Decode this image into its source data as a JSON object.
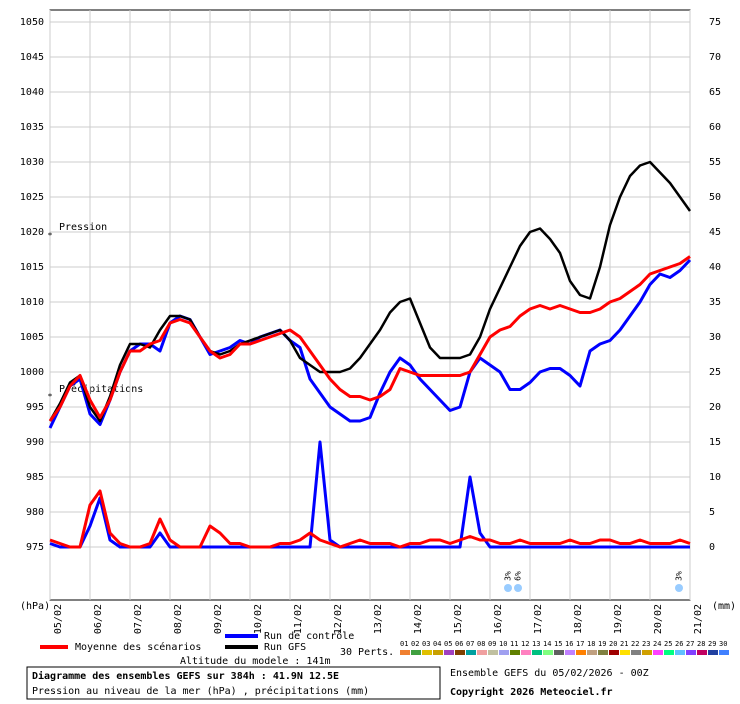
{
  "chart_data": {
    "type": "line",
    "title": "Diagramme des ensembles GEFS sur 384h : 41.9N 12.5E",
    "subtitle": "Pression au niveau de la mer (hPa) , précipitations (mm)",
    "ylabel": "(hPa)",
    "y2label": "(mm)",
    "annotations": [
      "Pression",
      "Précipitations"
    ],
    "categories": [
      "05/02",
      null,
      null,
      null,
      "06/02",
      null,
      null,
      null,
      "07/02",
      null,
      null,
      null,
      "08/02",
      null,
      null,
      null,
      "09/02",
      null,
      null,
      null,
      "10/02",
      null,
      null,
      null,
      "11/02",
      null,
      null,
      null,
      "12/02",
      null,
      null,
      null,
      "13/02",
      null,
      null,
      null,
      "14/02",
      null,
      null,
      null,
      "15/02",
      null,
      null,
      null,
      "16/02",
      null,
      null,
      null,
      "17/02",
      null,
      null,
      null,
      "18/02",
      null,
      null,
      null,
      "19/02",
      null,
      null,
      null,
      "20/02",
      null,
      null,
      null,
      "21/02"
    ],
    "ylim": [
      975,
      1050
    ],
    "yticks": [
      975,
      980,
      985,
      990,
      995,
      1000,
      1005,
      1010,
      1015,
      1020,
      1025,
      1030,
      1035,
      1040,
      1045,
      1050
    ],
    "y2lim": [
      0,
      75
    ],
    "y2ticks": [
      0,
      5,
      10,
      15,
      20,
      25,
      30,
      35,
      40,
      45,
      50,
      55,
      60,
      65,
      70,
      75
    ],
    "grid": true,
    "series": [
      {
        "name": "Moyenne des scénarios",
        "color": "#ff0000",
        "values": [
          993,
          995,
          998,
          999.5,
          996,
          993.5,
          996,
          1000,
          1003,
          1003,
          1004,
          1004.5,
          1007,
          1007.5,
          1007,
          1005,
          1003,
          1002,
          1002.5,
          1004,
          1004,
          1004.5,
          1005,
          1005.5,
          1006,
          1005,
          1003,
          1001,
          999,
          997.5,
          996.5,
          996.5,
          996,
          996.5,
          997.5,
          1000.5,
          1000,
          999.5,
          999.5,
          999.5,
          999.5,
          999.5,
          1000,
          1002.5,
          1005,
          1006,
          1006.5,
          1008,
          1009,
          1009.5,
          1009,
          1009.5,
          1009,
          1008.5,
          1008.5,
          1009,
          1010,
          1010.5,
          1011.5,
          1012.5,
          1014,
          1014.5,
          1015,
          1015.5,
          1016.5
        ],
        "precip": [
          1,
          0.5,
          0,
          0,
          6,
          8,
          2,
          0.5,
          0,
          0,
          0.5,
          4,
          1,
          0,
          0,
          0,
          3,
          2,
          0.5,
          0.5,
          0,
          0,
          0,
          0.5,
          0.5,
          1,
          2,
          1,
          0.5,
          0,
          0.5,
          1,
          0.5,
          0.5,
          0.5,
          0,
          0.5,
          0.5,
          1,
          1,
          0.5,
          1,
          1.5,
          1,
          1,
          0.5,
          0.5,
          1,
          0.5,
          0.5,
          0.5,
          0.5,
          1,
          0.5,
          0.5,
          1,
          1,
          0.5,
          0.5,
          1,
          0.5,
          0.5,
          0.5,
          1,
          0.5
        ]
      },
      {
        "name": "Run de contrôle",
        "color": "#0000ff",
        "values": [
          992,
          995,
          998,
          999,
          994,
          992.5,
          996,
          1000,
          1003,
          1004,
          1004,
          1003,
          1007,
          1008,
          1007.5,
          1005,
          1002.5,
          1003,
          1003.5,
          1004.5,
          1004,
          1005,
          1005.5,
          1006,
          1004.5,
          1003.5,
          999,
          997,
          995,
          994,
          993,
          993,
          993.5,
          997,
          1000,
          1002,
          1001,
          999,
          997.5,
          996,
          994.5,
          995,
          1000,
          1002,
          1001,
          1000,
          997.5,
          997.5,
          998.5,
          1000,
          1000.5,
          1000.5,
          999.5,
          998,
          1003,
          1004,
          1004.5,
          1006,
          1008,
          1010,
          1012.5,
          1014,
          1013.5,
          1014.5,
          1016
        ],
        "precip": [
          0.5,
          0,
          0,
          0,
          3,
          7,
          1,
          0,
          0,
          0,
          0,
          2,
          0,
          0,
          0,
          0,
          0,
          0,
          0,
          0,
          0,
          0,
          0,
          0,
          0,
          0,
          0,
          15,
          1,
          0,
          0,
          0,
          0,
          0,
          0,
          0,
          0,
          0,
          0,
          0,
          0,
          0,
          10,
          2,
          0,
          0,
          0,
          0,
          0,
          0,
          0,
          0,
          0,
          0,
          0,
          0,
          0,
          0,
          0,
          0,
          0,
          0,
          0,
          0,
          0
        ]
      },
      {
        "name": "Run GFS",
        "color": "#000000",
        "values": [
          993,
          995.5,
          998.5,
          999.5,
          995,
          993,
          996.5,
          1001,
          1004,
          1004,
          1003.5,
          1006,
          1008,
          1008,
          1007.5,
          1005,
          1003,
          1002.5,
          1003,
          1004,
          1004.5,
          1005,
          1005.5,
          1006,
          1004.5,
          1002,
          1001,
          1000,
          1000,
          1000,
          1000.5,
          1002,
          1004,
          1006,
          1008.5,
          1010,
          1010.5,
          1007,
          1003.5,
          1002,
          1002,
          1002,
          1002.5,
          1005,
          1009,
          1012,
          1015,
          1018,
          1020,
          1020.5,
          1019,
          1017,
          1013,
          1011,
          1010.5,
          1015,
          1021,
          1025,
          1028,
          1029.5,
          1030,
          1028.5,
          1027,
          1025,
          1023
        ]
      }
    ],
    "perturbations_label": "30 Perts.",
    "perturbations": [
      {
        "name": "01",
        "color": "#f08030"
      },
      {
        "name": "02",
        "color": "#40a040"
      },
      {
        "name": "03",
        "color": "#e0c000"
      },
      {
        "name": "04",
        "color": "#c8a000"
      },
      {
        "name": "05",
        "color": "#a040c0"
      },
      {
        "name": "06",
        "color": "#804000"
      },
      {
        "name": "07",
        "color": "#00a0a0"
      },
      {
        "name": "08",
        "color": "#f0a0a0"
      },
      {
        "name": "09",
        "color": "#c0c0a0"
      },
      {
        "name": "10",
        "color": "#a0a0f0"
      },
      {
        "name": "11",
        "color": "#608000"
      },
      {
        "name": "12",
        "color": "#ff80c0"
      },
      {
        "name": "13",
        "color": "#00c080"
      },
      {
        "name": "14",
        "color": "#80ff80"
      },
      {
        "name": "15",
        "color": "#606060"
      },
      {
        "name": "16",
        "color": "#c080ff"
      },
      {
        "name": "17",
        "color": "#ff8000"
      },
      {
        "name": "18",
        "color": "#c0a080"
      },
      {
        "name": "19",
        "color": "#808040"
      },
      {
        "name": "20",
        "color": "#a00000"
      },
      {
        "name": "21",
        "color": "#ffe000"
      },
      {
        "name": "22",
        "color": "#808080"
      },
      {
        "name": "23",
        "color": "#d0a000"
      },
      {
        "name": "24",
        "color": "#ff40ff"
      },
      {
        "name": "25",
        "color": "#00ff80"
      },
      {
        "name": "26",
        "color": "#60c0ff"
      },
      {
        "name": "27",
        "color": "#8040ff"
      },
      {
        "name": "28",
        "color": "#c00060"
      },
      {
        "name": "29",
        "color": "#2040a0"
      },
      {
        "name": "30",
        "color": "#4080ff"
      }
    ],
    "altitude": "Altitude du modele : 141m",
    "run_info": "Ensemble GEFS du 05/02/2026 - 00Z",
    "copyright": "Copyright 2026 Meteociel.fr",
    "snow_labels": [
      "3%",
      "6%",
      "3%"
    ]
  }
}
